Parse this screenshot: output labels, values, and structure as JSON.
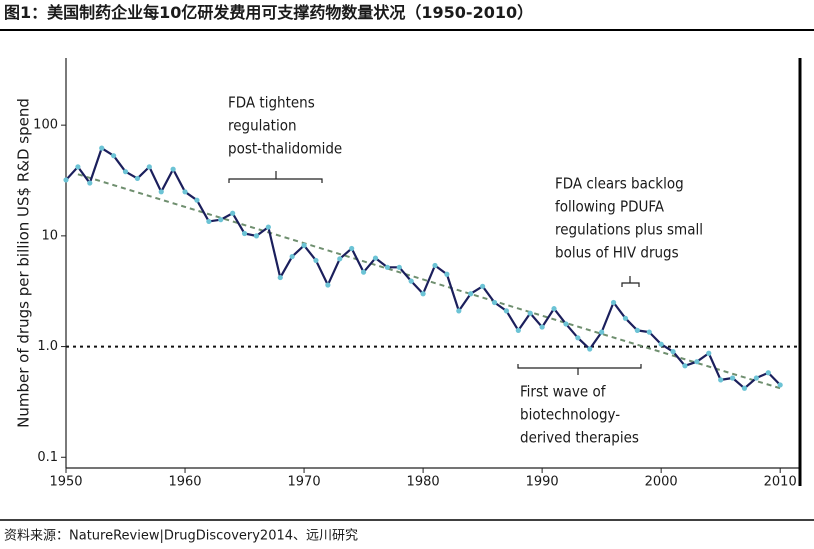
{
  "chart_data": {
    "type": "line",
    "title": "图1：美国制药企业每10亿研发费用可支撑药物数量状况（1950-2010）",
    "y_label": "Number of drugs per billion US$ R&D spend",
    "source": "资料来源：NatureReview|DrugDiscovery2014、远川研究",
    "x": [
      1950,
      1951,
      1952,
      1953,
      1954,
      1955,
      1956,
      1957,
      1958,
      1959,
      1960,
      1961,
      1962,
      1963,
      1964,
      1965,
      1966,
      1967,
      1968,
      1969,
      1970,
      1971,
      1972,
      1973,
      1974,
      1975,
      1976,
      1977,
      1978,
      1979,
      1980,
      1981,
      1982,
      1983,
      1984,
      1985,
      1986,
      1987,
      1988,
      1989,
      1990,
      1991,
      1992,
      1993,
      1994,
      1995,
      1996,
      1997,
      1998,
      1999,
      2000,
      2001,
      2002,
      2003,
      2004,
      2005,
      2006,
      2007,
      2008,
      2009,
      2010
    ],
    "values": [
      32,
      42,
      30,
      62,
      53,
      38,
      33,
      42,
      25,
      40,
      25,
      21,
      13.5,
      14,
      16,
      10.5,
      10,
      12,
      4.2,
      6.5,
      8.2,
      6,
      3.6,
      6.2,
      7.7,
      4.7,
      6.3,
      5.2,
      5.2,
      3.9,
      3,
      5.4,
      4.5,
      2.1,
      3,
      3.5,
      2.5,
      2.1,
      1.4,
      2,
      1.5,
      2.2,
      1.6,
      1.2,
      0.95,
      1.35,
      2.5,
      1.8,
      1.4,
      1.35,
      1.05,
      0.9,
      0.67,
      0.73,
      0.87,
      0.5,
      0.52,
      0.42,
      0.52,
      0.58,
      0.45
    ],
    "color": "#1b1f5c",
    "marker_color": "#6cc3d5",
    "trend": {
      "x": [
        1951,
        2010
      ],
      "values": [
        36,
        0.42
      ],
      "color": "#6f8f6f"
    },
    "reference_line": 1,
    "log_y": true,
    "xlim": [
      1950,
      2012
    ],
    "xticks": [
      1950,
      1960,
      1970,
      1980,
      1990,
      2000,
      2010
    ],
    "ylim": [
      0.08,
      400
    ],
    "yticks": [
      0.1,
      {
        "value": 1,
        "label": "1.0"
      },
      10,
      100
    ],
    "annotations": [
      {
        "lines": [
          "FDA tightens",
          "regulation",
          "post-thalidomide"
        ]
      },
      {
        "lines": [
          "FDA clears backlog",
          "following PDUFA",
          "regulations plus small",
          "bolus of HIV drugs"
        ]
      },
      {
        "lines": [
          "First wave of",
          "biotechnology-",
          "derived therapies"
        ]
      }
    ]
  }
}
